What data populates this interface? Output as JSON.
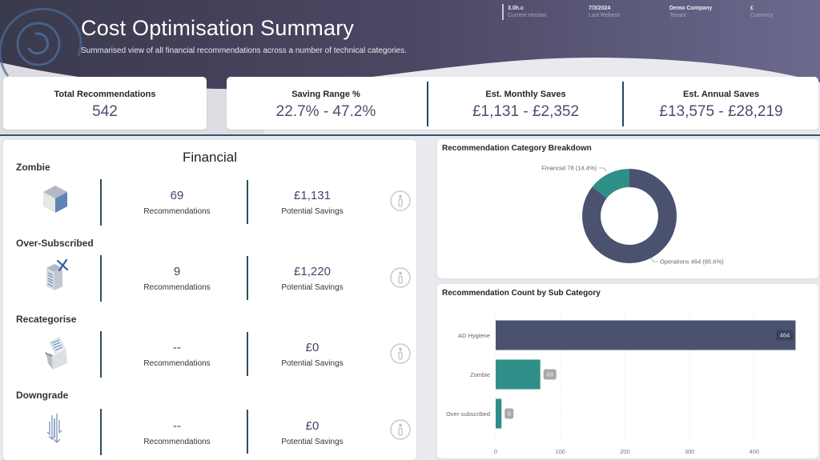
{
  "header": {
    "title": "Cost Optimisation Summary",
    "subtitle": "Summarised view of all financial recommendations across a number of technical categories.",
    "logo_icon": "swirl-logo-icon",
    "meta": [
      {
        "value": "3.0h.c",
        "label": "Current Version"
      },
      {
        "value": "7/3/2024",
        "label": "Last Refresh"
      },
      {
        "value": "Demo Company",
        "label": "Tenant"
      },
      {
        "value": "£",
        "label": "Currency"
      }
    ]
  },
  "kpis": {
    "total_recommendations": {
      "label": "Total Recommendations",
      "value": "542"
    },
    "saving_range": {
      "label": "Saving Range %",
      "value": "22.7% - 47.2%"
    },
    "monthly_saves": {
      "label": "Est. Monthly Saves",
      "value": "£1,131 - £2,352"
    },
    "annual_saves": {
      "label": "Est. Annual Saves",
      "value": "£13,575 - £28,219"
    }
  },
  "financial": {
    "title": "Financial",
    "sections": [
      {
        "name": "Zombie",
        "icon": "cube-icon",
        "recommendations": "69",
        "recommendations_label": "Recommendations",
        "savings": "£1,131",
        "savings_label": "Potential Savings",
        "info_icon": "info-icon"
      },
      {
        "name": "Over-Subscribed",
        "icon": "server-remove-icon",
        "recommendations": "9",
        "recommendations_label": "Recommendations",
        "savings": "£1,220",
        "savings_label": "Potential Savings",
        "info_icon": "info-icon"
      },
      {
        "name": "Recategorise",
        "icon": "folder-document-icon",
        "recommendations": "--",
        "recommendations_label": "Recommendations",
        "savings": "£0",
        "savings_label": "Potential Savings",
        "info_icon": "info-icon"
      },
      {
        "name": "Downgrade",
        "icon": "down-arrows-icon",
        "recommendations": "--",
        "recommendations_label": "Recommendations",
        "savings": "£0",
        "savings_label": "Potential Savings",
        "info_icon": "info-icon"
      }
    ]
  },
  "colors": {
    "operations": "#4a5270",
    "financial": "#2f8f88",
    "accent_line": "#2d5a6a",
    "kpi_value": "#4a4f6e"
  },
  "chart_data": [
    {
      "type": "pie",
      "variant": "donut",
      "title": "Recommendation Category Breakdown",
      "categories": [
        "Financial",
        "Operations"
      ],
      "values": [
        78,
        464
      ],
      "percentages": [
        14.4,
        85.6
      ],
      "labels": [
        "Financial 78 (14.4%)",
        "Operations 464 (85.6%)"
      ],
      "colors": [
        "#2f8f88",
        "#4a5270"
      ]
    },
    {
      "type": "bar",
      "orientation": "horizontal",
      "title": "Recommendation Count by Sub Category",
      "categories": [
        "AD Hygiene",
        "Zombie",
        "Over-subscribed"
      ],
      "values": [
        464,
        69,
        9
      ],
      "data_labels": [
        "464",
        "69",
        "9"
      ],
      "colors": [
        "#4a5270",
        "#2f8f88",
        "#2f8f88"
      ],
      "xticks": [
        0,
        100,
        200,
        300,
        400
      ],
      "xlim": [
        0,
        470
      ],
      "xlabel": "",
      "ylabel": "",
      "grid": true
    }
  ]
}
